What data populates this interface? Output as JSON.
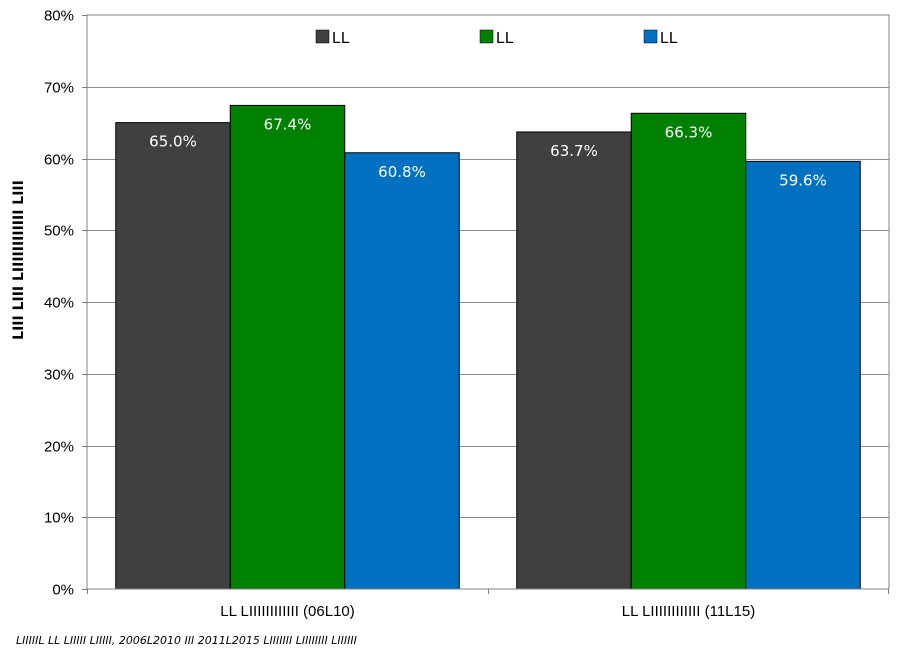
{
  "chart_data": {
    "type": "bar",
    "title": "",
    "xlabel": "",
    "ylabel": "LIII LIII LIIIIIIIIIIII LIII",
    "categories": [
      "LL LIIIIIIIIIIII (06L10)",
      "LL LIIIIIIIIIIII (11L15)"
    ],
    "series": [
      {
        "name": "LL",
        "color": "#404040",
        "values": [
          65.0,
          63.7
        ]
      },
      {
        "name": "LL",
        "color": "#008000",
        "values": [
          67.4,
          66.3
        ]
      },
      {
        "name": "LL",
        "color": "#0070c0",
        "values": [
          60.8,
          59.6
        ]
      }
    ],
    "data_labels": [
      [
        "65.0%",
        "63.7%"
      ],
      [
        "67.4%",
        "66.3%"
      ],
      [
        "60.8%",
        "59.6%"
      ]
    ],
    "yticks": [
      0,
      10,
      20,
      30,
      40,
      50,
      60,
      70,
      80
    ],
    "ytick_labels": [
      "0%",
      "10%",
      "20%",
      "30%",
      "40%",
      "50%",
      "60%",
      "70%",
      "80%"
    ],
    "ylim": [
      0,
      80
    ],
    "grid": true,
    "legend_position": "top"
  },
  "footnote": "LIIIIIL LL LIIIII LIIIII, 2006L2010 III 2011L2015 LIIIIIII LIIIIIIII LIIIIII"
}
